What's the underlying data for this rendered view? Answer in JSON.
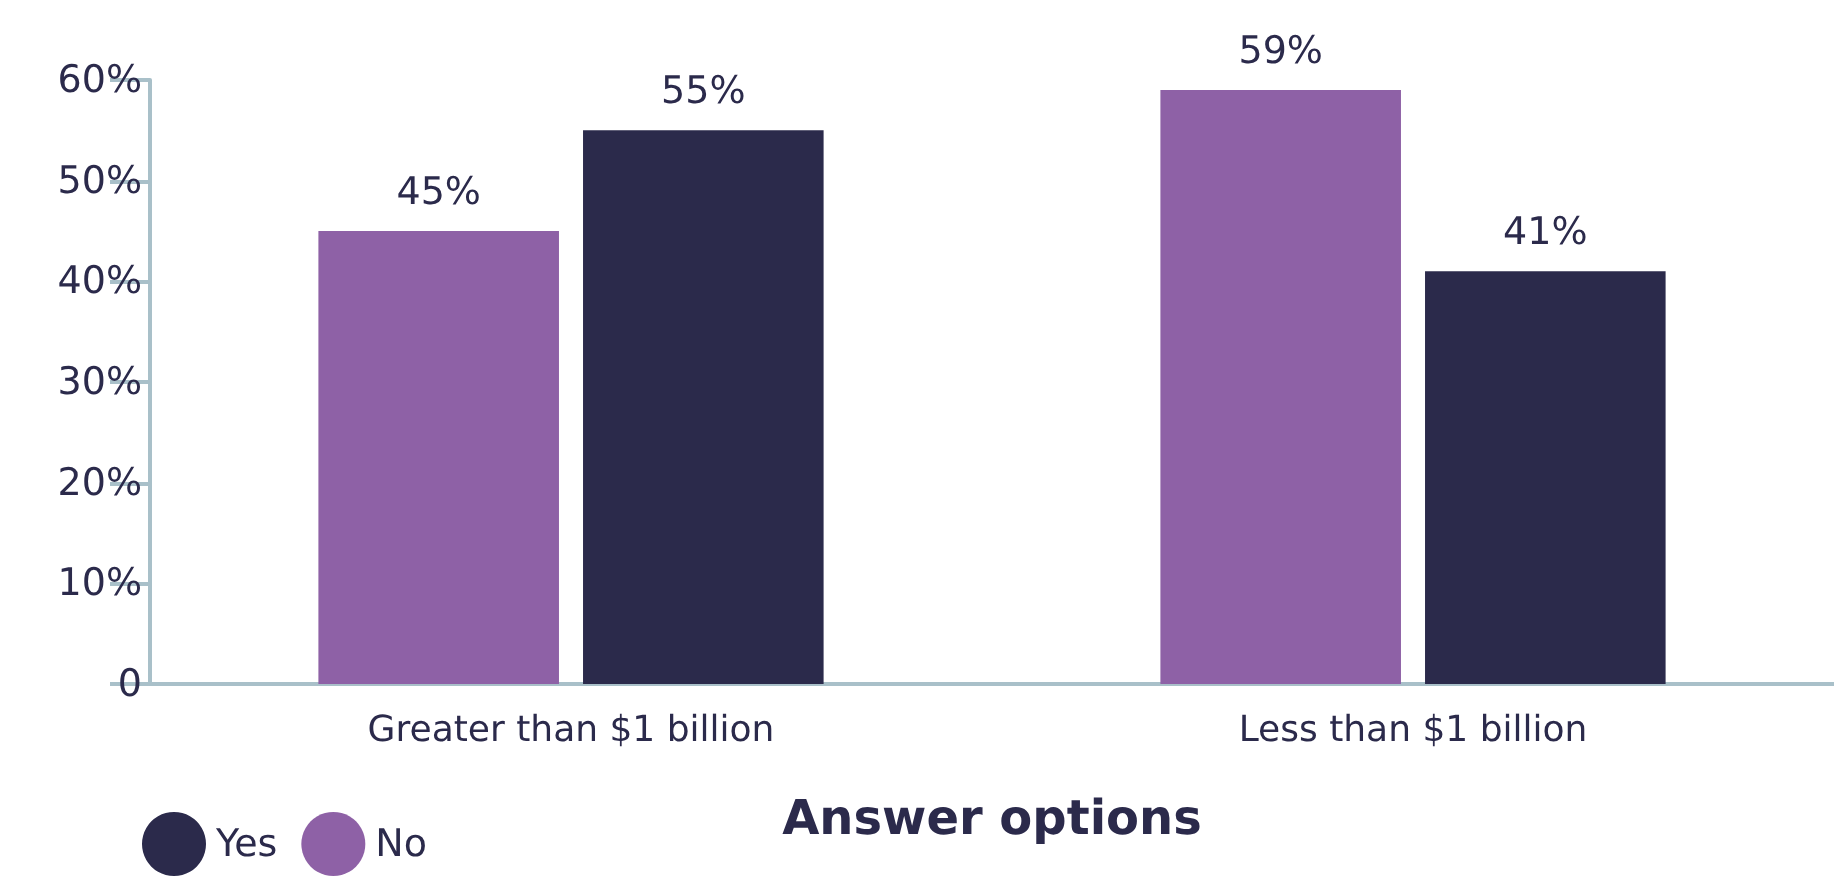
{
  "chart_data": {
    "type": "bar",
    "xlabel": "Answer options",
    "categories": [
      "Greater than $1 billion",
      "Less than $1 billion"
    ],
    "series": [
      {
        "name": "No",
        "color": "#8e61a6",
        "values": [
          45,
          59
        ],
        "value_labels": [
          "45%",
          "59%"
        ]
      },
      {
        "name": "Yes",
        "color": "#2b2a4b",
        "values": [
          55,
          41
        ],
        "value_labels": [
          "55%",
          "41%"
        ]
      }
    ],
    "ylim": [
      0,
      60
    ],
    "yticks": [
      {
        "value": 0,
        "label": "0"
      },
      {
        "value": 10,
        "label": "10%"
      },
      {
        "value": 20,
        "label": "20%"
      },
      {
        "value": 30,
        "label": "30%"
      },
      {
        "value": 40,
        "label": "40%"
      },
      {
        "value": 50,
        "label": "50%"
      },
      {
        "value": 60,
        "label": "60%"
      }
    ],
    "grid": false,
    "legend": "bottom left"
  }
}
